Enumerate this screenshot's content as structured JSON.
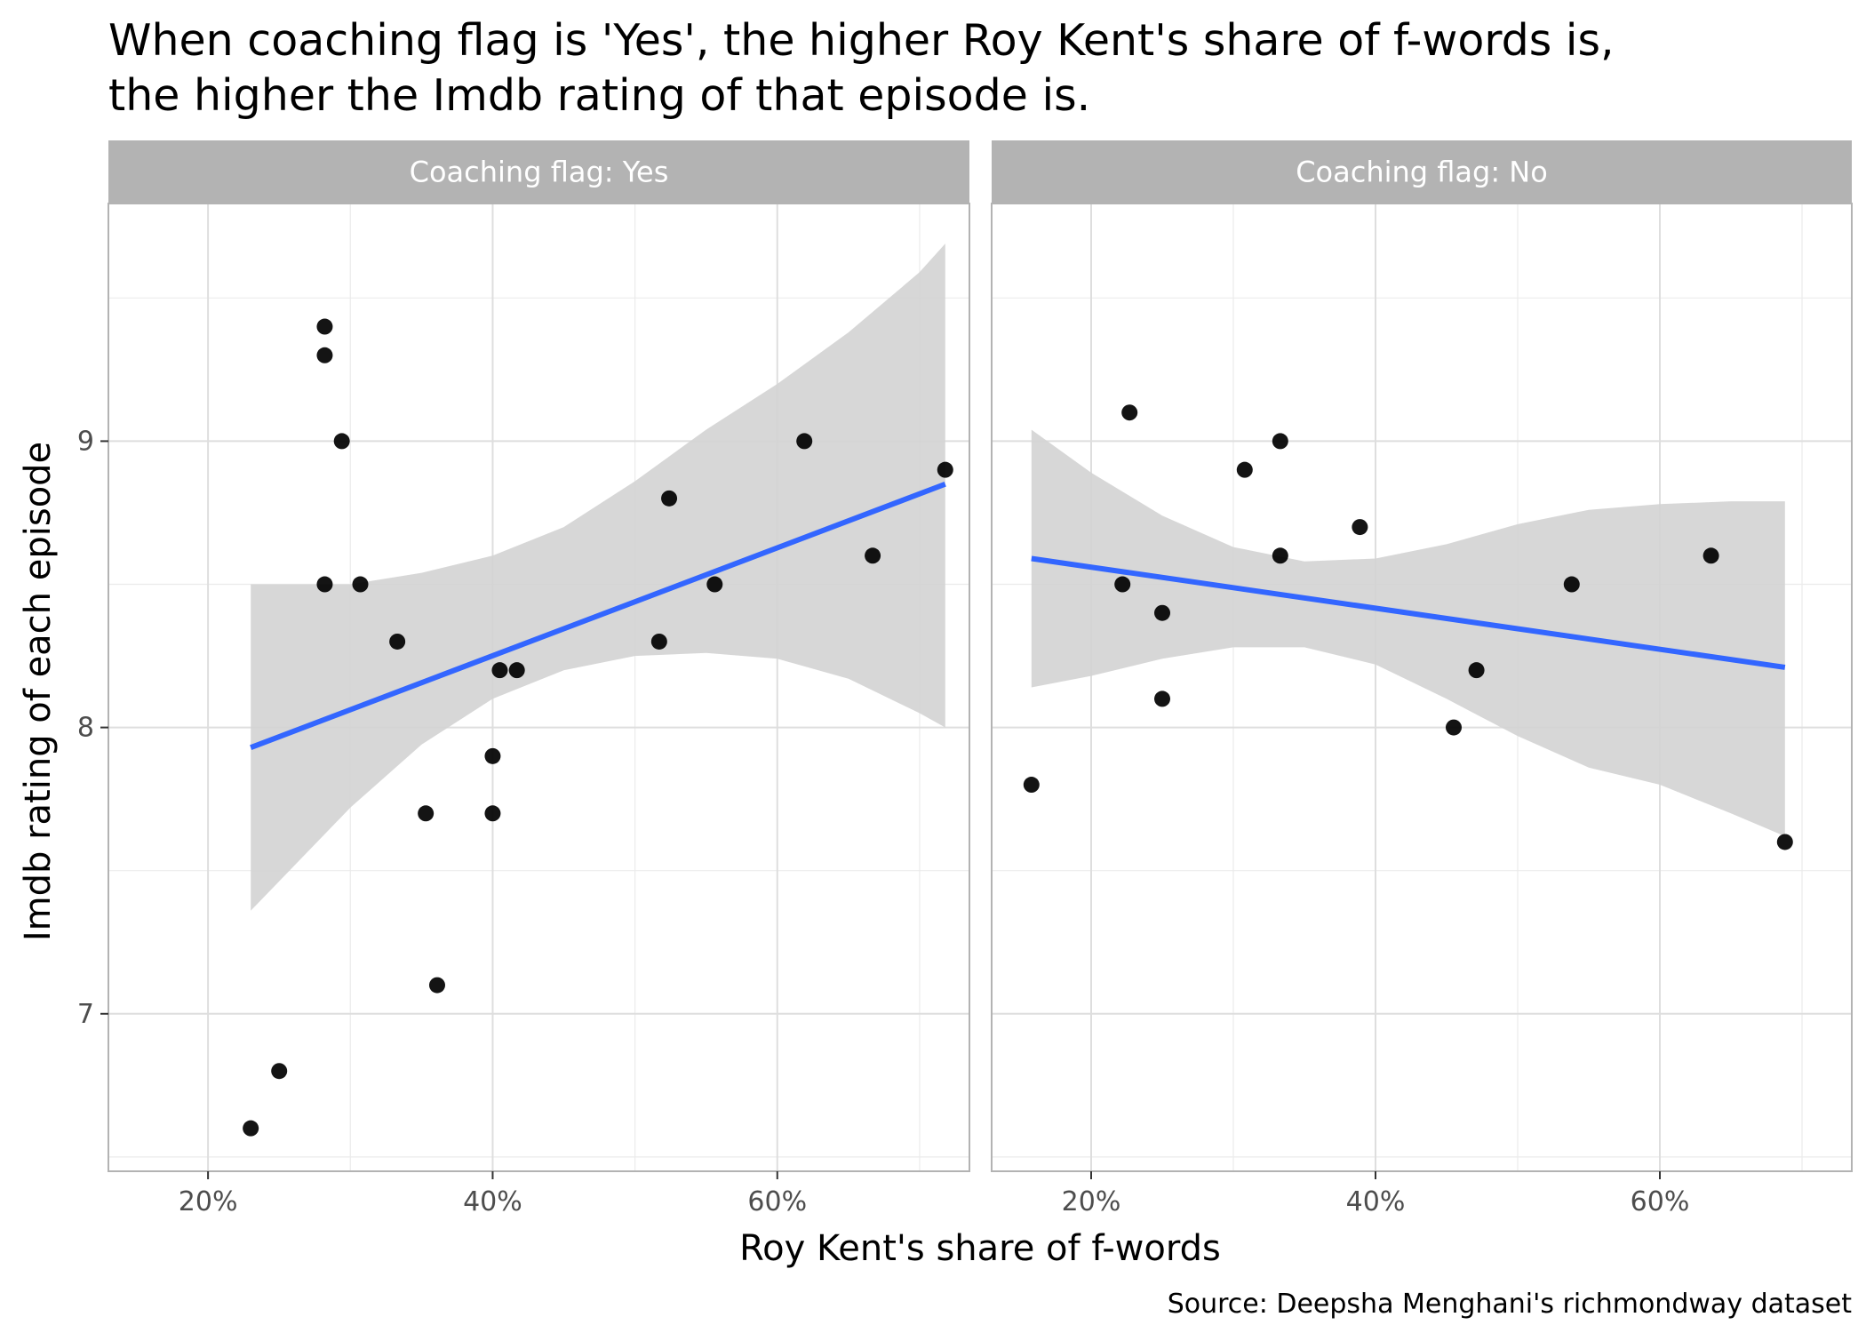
{
  "chart_data": {
    "type": "scatter",
    "title_lines": [
      "When coaching flag is 'Yes', the higher Roy Kent's share of f-words is,",
      "the higher the Imdb rating of that episode is."
    ],
    "xlabel": "Roy Kent's share of f-words",
    "ylabel": "Imdb rating of each episode",
    "caption": "Source: Deepsha Menghani's richmondway dataset",
    "xlim": [
      0.13,
      0.735
    ],
    "ylim": [
      6.45,
      9.83
    ],
    "x_ticks": [
      0.2,
      0.4,
      0.6
    ],
    "x_tick_labels": [
      "20%",
      "40%",
      "60%"
    ],
    "y_ticks": [
      7,
      8,
      9
    ],
    "y_tick_labels": [
      "7",
      "8",
      "9"
    ],
    "grid": true,
    "point_color": "#000000",
    "smooth_color": "#3366ff",
    "ribbon_color": "#d3d3d3",
    "strip_color": "#b3b3b3",
    "facets": [
      {
        "label": "Coaching flag: Yes",
        "points": [
          {
            "x": 0.23,
            "y": 6.6
          },
          {
            "x": 0.25,
            "y": 6.8
          },
          {
            "x": 0.282,
            "y": 9.4
          },
          {
            "x": 0.282,
            "y": 9.3
          },
          {
            "x": 0.282,
            "y": 8.5
          },
          {
            "x": 0.294,
            "y": 9.0
          },
          {
            "x": 0.307,
            "y": 8.5
          },
          {
            "x": 0.333,
            "y": 8.3
          },
          {
            "x": 0.353,
            "y": 7.7
          },
          {
            "x": 0.361,
            "y": 7.1
          },
          {
            "x": 0.4,
            "y": 7.9
          },
          {
            "x": 0.4,
            "y": 7.7
          },
          {
            "x": 0.405,
            "y": 8.2
          },
          {
            "x": 0.417,
            "y": 8.2
          },
          {
            "x": 0.517,
            "y": 8.3
          },
          {
            "x": 0.524,
            "y": 8.8
          },
          {
            "x": 0.556,
            "y": 8.5
          },
          {
            "x": 0.619,
            "y": 9.0
          },
          {
            "x": 0.667,
            "y": 8.6
          },
          {
            "x": 0.718,
            "y": 8.9
          }
        ],
        "fit": {
          "x": [
            0.23,
            0.718
          ],
          "y": [
            7.93,
            8.85
          ]
        },
        "band": {
          "x": [
            0.23,
            0.3,
            0.35,
            0.4,
            0.45,
            0.5,
            0.55,
            0.6,
            0.65,
            0.7,
            0.718
          ],
          "lower": [
            7.36,
            7.72,
            7.94,
            8.1,
            8.2,
            8.25,
            8.26,
            8.24,
            8.17,
            8.05,
            8.0
          ],
          "upper": [
            8.5,
            8.5,
            8.54,
            8.6,
            8.7,
            8.86,
            9.04,
            9.2,
            9.38,
            9.59,
            9.69
          ]
        }
      },
      {
        "label": "Coaching flag: No",
        "points": [
          {
            "x": 0.158,
            "y": 7.8
          },
          {
            "x": 0.222,
            "y": 8.5
          },
          {
            "x": 0.227,
            "y": 9.1
          },
          {
            "x": 0.25,
            "y": 8.4
          },
          {
            "x": 0.25,
            "y": 8.1
          },
          {
            "x": 0.308,
            "y": 8.9
          },
          {
            "x": 0.333,
            "y": 9.0
          },
          {
            "x": 0.333,
            "y": 8.6
          },
          {
            "x": 0.389,
            "y": 8.7
          },
          {
            "x": 0.455,
            "y": 8.0
          },
          {
            "x": 0.471,
            "y": 8.2
          },
          {
            "x": 0.538,
            "y": 8.5
          },
          {
            "x": 0.636,
            "y": 8.6
          },
          {
            "x": 0.688,
            "y": 7.6
          }
        ],
        "fit": {
          "x": [
            0.158,
            0.688
          ],
          "y": [
            8.59,
            8.21
          ]
        },
        "band": {
          "x": [
            0.158,
            0.2,
            0.25,
            0.3,
            0.35,
            0.4,
            0.45,
            0.5,
            0.55,
            0.6,
            0.65,
            0.688
          ],
          "lower": [
            8.14,
            8.18,
            8.24,
            8.28,
            8.28,
            8.22,
            8.1,
            7.97,
            7.86,
            7.8,
            7.7,
            7.62
          ],
          "upper": [
            9.04,
            8.89,
            8.74,
            8.63,
            8.58,
            8.59,
            8.64,
            8.71,
            8.76,
            8.78,
            8.79,
            8.79
          ]
        }
      }
    ]
  }
}
